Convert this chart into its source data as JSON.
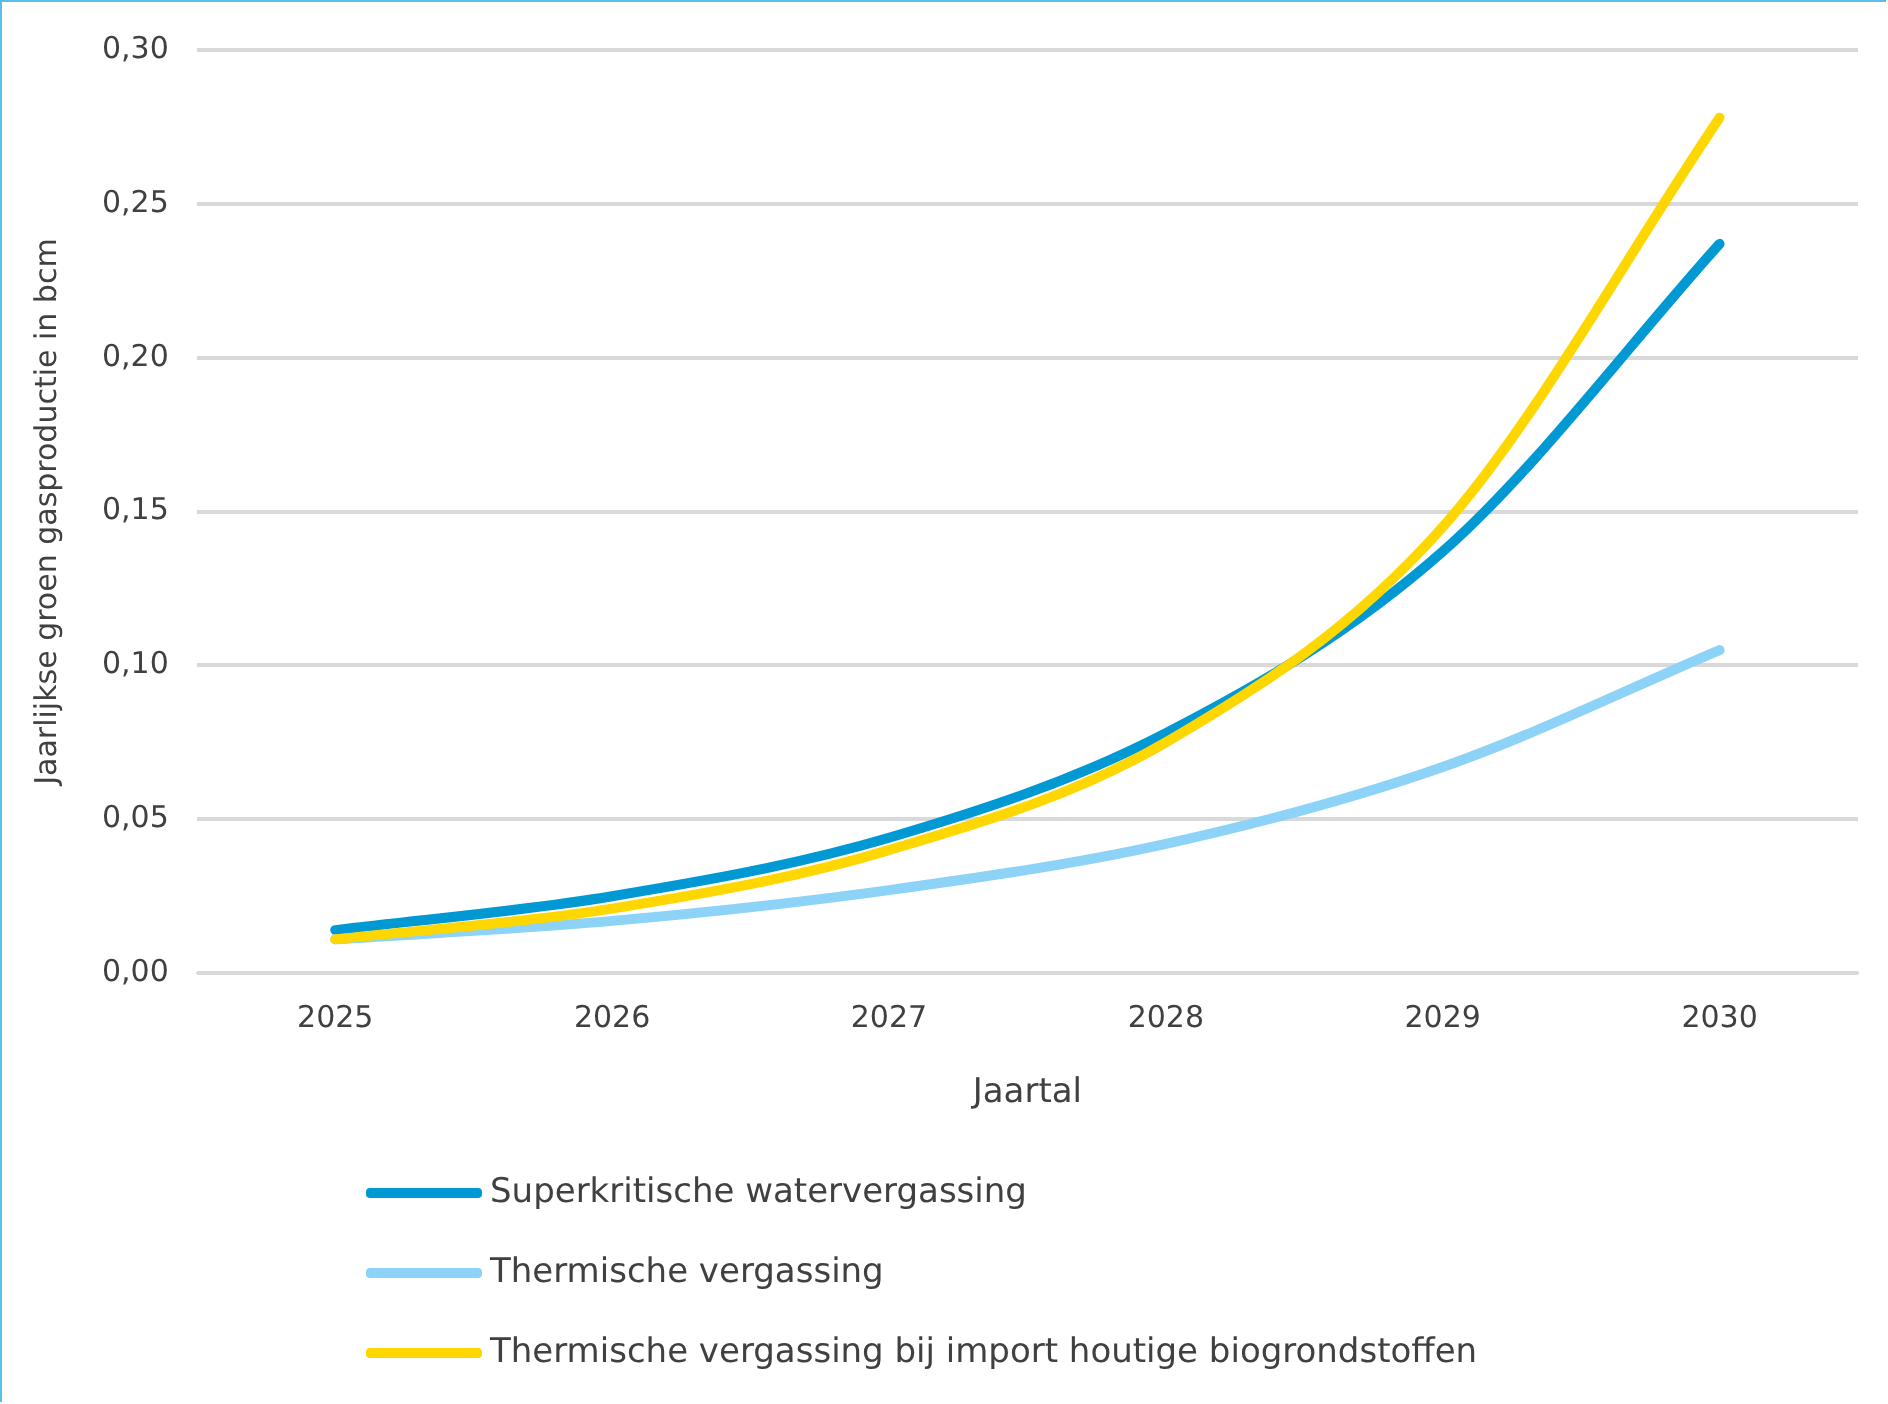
{
  "chart_data": {
    "type": "line",
    "xlabel": "Jaartal",
    "ylabel": "Jaarlijkse groen gasproductie in bcm",
    "categories": [
      "2025",
      "2026",
      "2027",
      "2028",
      "2029",
      "2030"
    ],
    "series": [
      {
        "name": "Superkritische watervergassing",
        "color": "#0099d4",
        "values": [
          0.014,
          0.025,
          0.044,
          0.078,
          0.137,
          0.237
        ]
      },
      {
        "name": "Thermische vergassing",
        "color": "#8dd3f7",
        "values": [
          0.011,
          0.017,
          0.027,
          0.042,
          0.067,
          0.105
        ]
      },
      {
        "name": "Thermische vergassing bij import houtige biogrondstoffen",
        "color": "#ffd700",
        "values": [
          0.011,
          0.021,
          0.04,
          0.075,
          0.145,
          0.278
        ]
      }
    ],
    "ylim": [
      0,
      0.3
    ],
    "yticks": [
      {
        "value": 0,
        "label": "0,00"
      },
      {
        "value": 0.05,
        "label": "0,05"
      },
      {
        "value": 0.1,
        "label": "0,10"
      },
      {
        "value": 0.15,
        "label": "0,15"
      },
      {
        "value": 0.2,
        "label": "0,20"
      },
      {
        "value": 0.25,
        "label": "0,25"
      },
      {
        "value": 0.3,
        "label": "0,30"
      }
    ],
    "grid": "y",
    "legend": "bottom",
    "marker": "none",
    "line_style": "solid"
  }
}
